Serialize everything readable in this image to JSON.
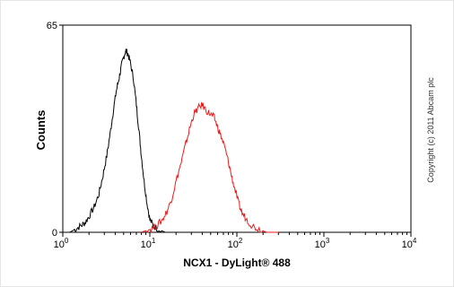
{
  "chart_data": {
    "type": "line",
    "title": "",
    "xlabel": "NCX1 - DyLight® 488",
    "ylabel": "Counts",
    "xscale": "log",
    "xlim": [
      1,
      10000
    ],
    "ylim": [
      0,
      65
    ],
    "x_ticks": [
      {
        "base": "10",
        "exp": "0",
        "value": 1
      },
      {
        "base": "10",
        "exp": "1",
        "value": 10
      },
      {
        "base": "10",
        "exp": "2",
        "value": 100
      },
      {
        "base": "10",
        "exp": "3",
        "value": 1000
      },
      {
        "base": "10",
        "exp": "4",
        "value": 10000
      }
    ],
    "y_ticks": [
      {
        "label": "0",
        "value": 0
      },
      {
        "label": "65",
        "value": 65
      }
    ],
    "grid": false,
    "copyright": "Copyright (c) 2011 Abcam plc",
    "series": [
      {
        "color": "#000000",
        "points": [
          [
            1.2,
            0
          ],
          [
            1.4,
            1
          ],
          [
            1.6,
            2
          ],
          [
            1.8,
            3
          ],
          [
            2.0,
            5
          ],
          [
            2.3,
            8
          ],
          [
            2.6,
            12
          ],
          [
            2.9,
            18
          ],
          [
            3.2,
            24
          ],
          [
            3.5,
            31
          ],
          [
            3.8,
            38
          ],
          [
            4.1,
            44
          ],
          [
            4.4,
            48
          ],
          [
            4.7,
            52
          ],
          [
            5.0,
            55
          ],
          [
            5.3,
            57
          ],
          [
            5.6,
            56
          ],
          [
            6.0,
            53
          ],
          [
            6.5,
            48
          ],
          [
            7.0,
            40
          ],
          [
            7.5,
            32
          ],
          [
            8.0,
            24
          ],
          [
            8.6,
            16
          ],
          [
            9.3,
            9
          ],
          [
            10.0,
            4
          ],
          [
            11.0,
            2
          ],
          [
            12.5,
            1
          ],
          [
            15,
            0
          ]
        ]
      },
      {
        "color": "#e81c1c",
        "points": [
          [
            8,
            0
          ],
          [
            10,
            1
          ],
          [
            12,
            2
          ],
          [
            14,
            4
          ],
          [
            16,
            7
          ],
          [
            18,
            11
          ],
          [
            20,
            16
          ],
          [
            23,
            22
          ],
          [
            26,
            28
          ],
          [
            29,
            33
          ],
          [
            32,
            37
          ],
          [
            36,
            39
          ],
          [
            40,
            40
          ],
          [
            45,
            38
          ],
          [
            50,
            37
          ],
          [
            55,
            36
          ],
          [
            60,
            33
          ],
          [
            66,
            30
          ],
          [
            72,
            27
          ],
          [
            80,
            22
          ],
          [
            88,
            17
          ],
          [
            96,
            13
          ],
          [
            105,
            9
          ],
          [
            115,
            6
          ],
          [
            130,
            4
          ],
          [
            150,
            2
          ],
          [
            180,
            1
          ],
          [
            220,
            0
          ],
          [
            300,
            0
          ]
        ]
      }
    ]
  }
}
